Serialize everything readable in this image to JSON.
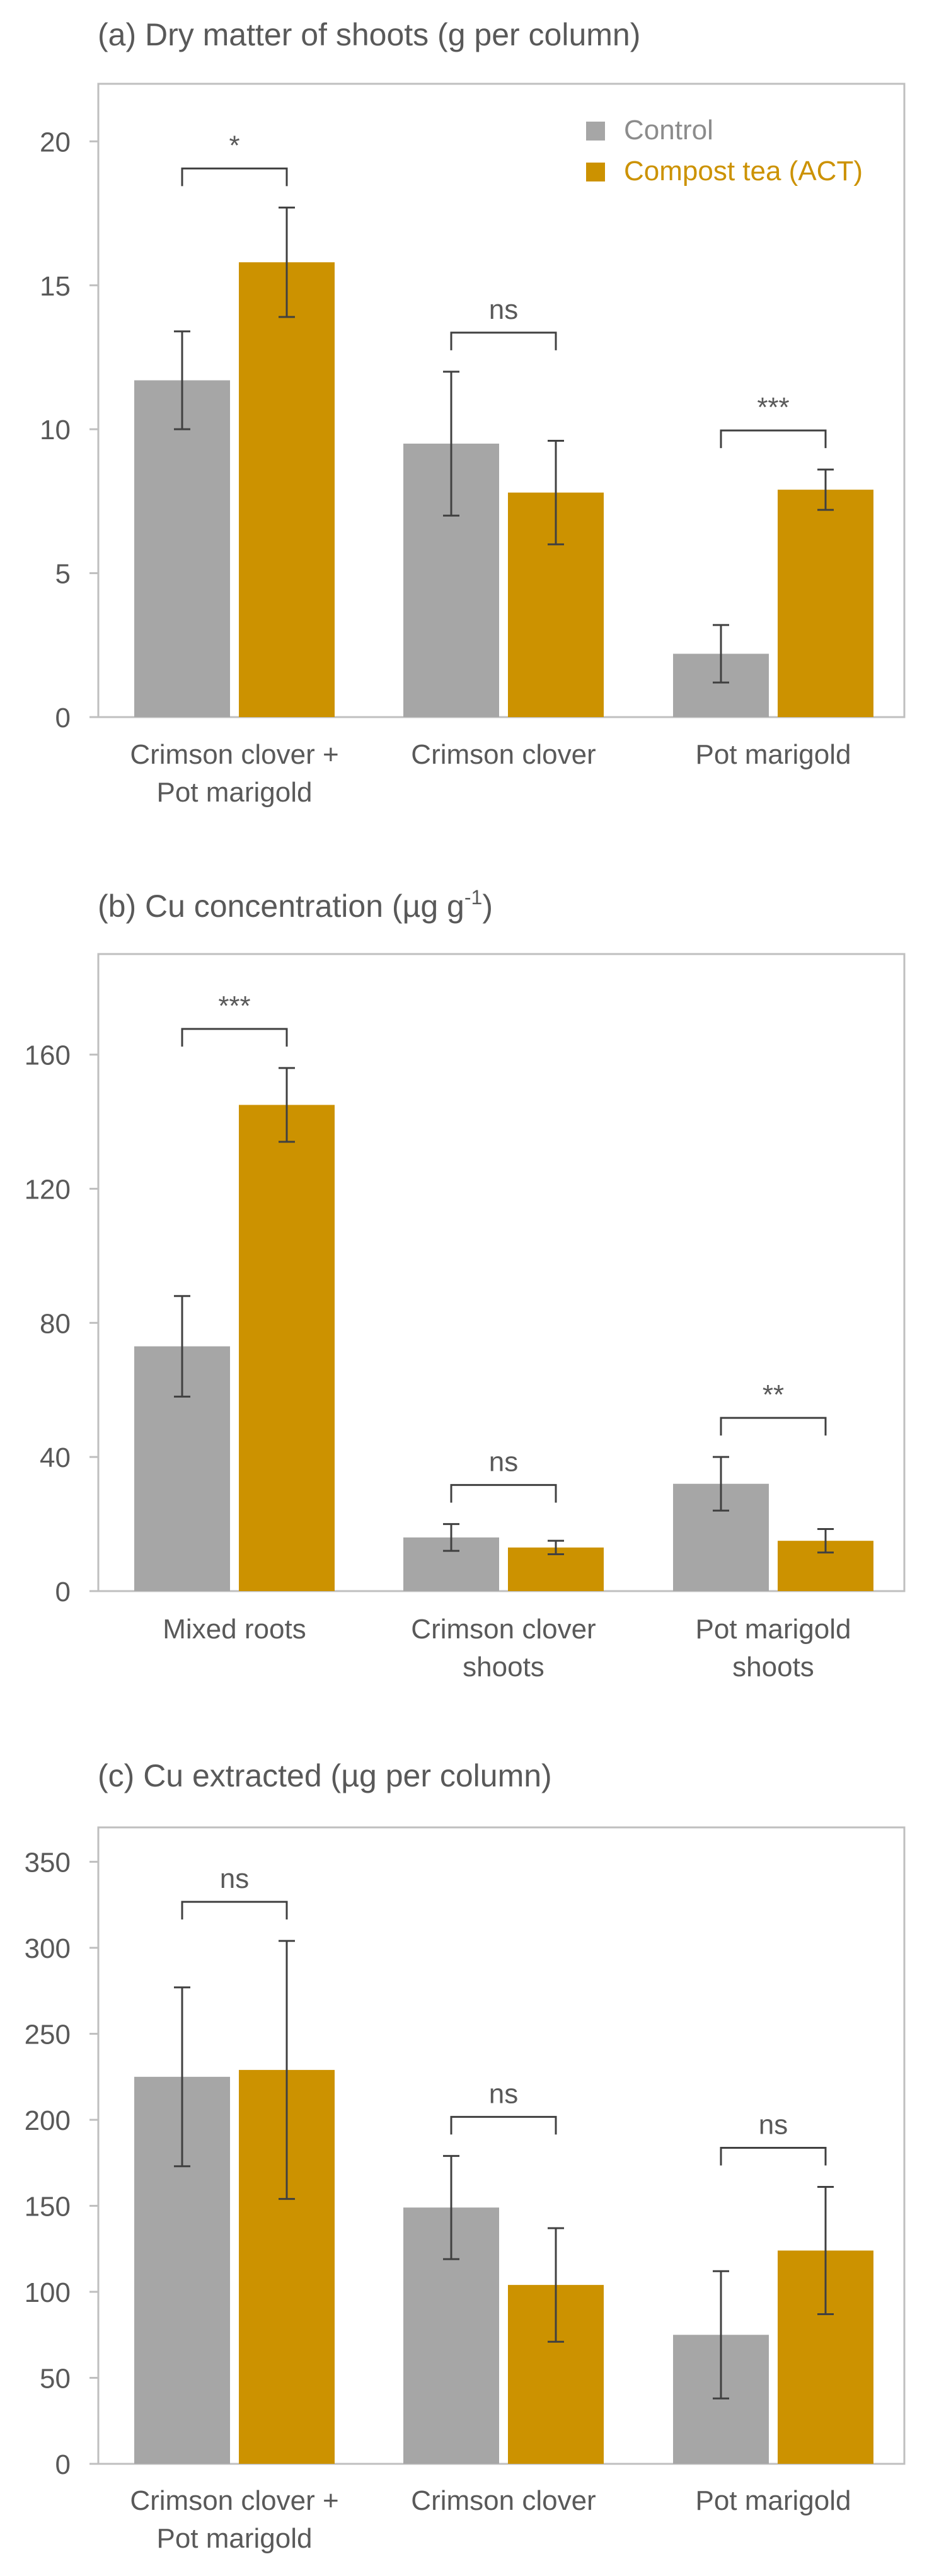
{
  "colors": {
    "control": "#a6a6a6",
    "compost": "#cc9200",
    "axis": "#bfbfbf",
    "text": "#595959",
    "errorbar": "#404040"
  },
  "legend": {
    "control_label": "Control",
    "compost_label": "Compost tea (ACT)",
    "placement": "top-right"
  },
  "chart_data": [
    {
      "type": "bar",
      "title": "(a) Dry matter of shoots (g per column)",
      "title_parts": [
        {
          "text": "(a) Dry matter of shoots (g per column)",
          "sup": false
        }
      ],
      "xlabel": "",
      "ylabel": "",
      "ylim": [
        0,
        22
      ],
      "yticks": [
        "0",
        "5",
        "10",
        "15",
        "20"
      ],
      "ytick_values": [
        0,
        5,
        10,
        15,
        20
      ],
      "categories": [
        [
          "Crimson clover +",
          "Pot marigold"
        ],
        [
          "Crimson clover"
        ],
        [
          "Pot marigold"
        ]
      ],
      "series": [
        {
          "name": "Control",
          "values": [
            11.7,
            9.5,
            2.2
          ],
          "errors": [
            1.7,
            2.5,
            1.0
          ]
        },
        {
          "name": "Compost tea (ACT)",
          "values": [
            15.8,
            7.8,
            7.9
          ],
          "errors": [
            1.9,
            1.8,
            0.7
          ]
        }
      ],
      "significance": [
        "*",
        "ns",
        "***"
      ],
      "legend": true
    },
    {
      "type": "bar",
      "title": "(b) Cu concentration (µg g-1)",
      "title_parts": [
        {
          "text": "(b) Cu concentration (µg g",
          "sup": false
        },
        {
          "text": "-1",
          "sup": true
        },
        {
          "text": ")",
          "sup": false
        }
      ],
      "xlabel": "",
      "ylabel": "",
      "ylim": [
        0,
        190
      ],
      "yticks": [
        "0",
        "40",
        "80",
        "120",
        "160"
      ],
      "ytick_values": [
        0,
        40,
        80,
        120,
        160
      ],
      "categories": [
        [
          "Mixed roots"
        ],
        [
          "Crimson clover",
          "shoots"
        ],
        [
          "Pot marigold",
          "shoots"
        ]
      ],
      "series": [
        {
          "name": "Control",
          "values": [
            73,
            16,
            32
          ],
          "errors": [
            15,
            4,
            8
          ]
        },
        {
          "name": "Compost tea (ACT)",
          "values": [
            145,
            13,
            15
          ],
          "errors": [
            11,
            2,
            3.5
          ]
        }
      ],
      "significance": [
        "***",
        "ns",
        "**"
      ],
      "legend": false
    },
    {
      "type": "bar",
      "title": "(c) Cu extracted (µg per column)",
      "title_parts": [
        {
          "text": "(c) Cu extracted (µg per column)",
          "sup": false
        }
      ],
      "xlabel": "",
      "ylabel": "",
      "ylim": [
        0,
        370
      ],
      "yticks": [
        "0",
        "50",
        "100",
        "150",
        "200",
        "250",
        "300",
        "350"
      ],
      "ytick_values": [
        0,
        50,
        100,
        150,
        200,
        250,
        300,
        350
      ],
      "categories": [
        [
          "Crimson clover +",
          "Pot marigold"
        ],
        [
          "Crimson clover"
        ],
        [
          "Pot marigold"
        ]
      ],
      "series": [
        {
          "name": "Control",
          "values": [
            225,
            149,
            75
          ],
          "errors": [
            52,
            30,
            37
          ]
        },
        {
          "name": "Compost tea (ACT)",
          "values": [
            229,
            104,
            124
          ],
          "errors": [
            75,
            33,
            37
          ]
        }
      ],
      "significance": [
        "ns",
        "ns",
        "ns"
      ],
      "legend": false
    }
  ]
}
